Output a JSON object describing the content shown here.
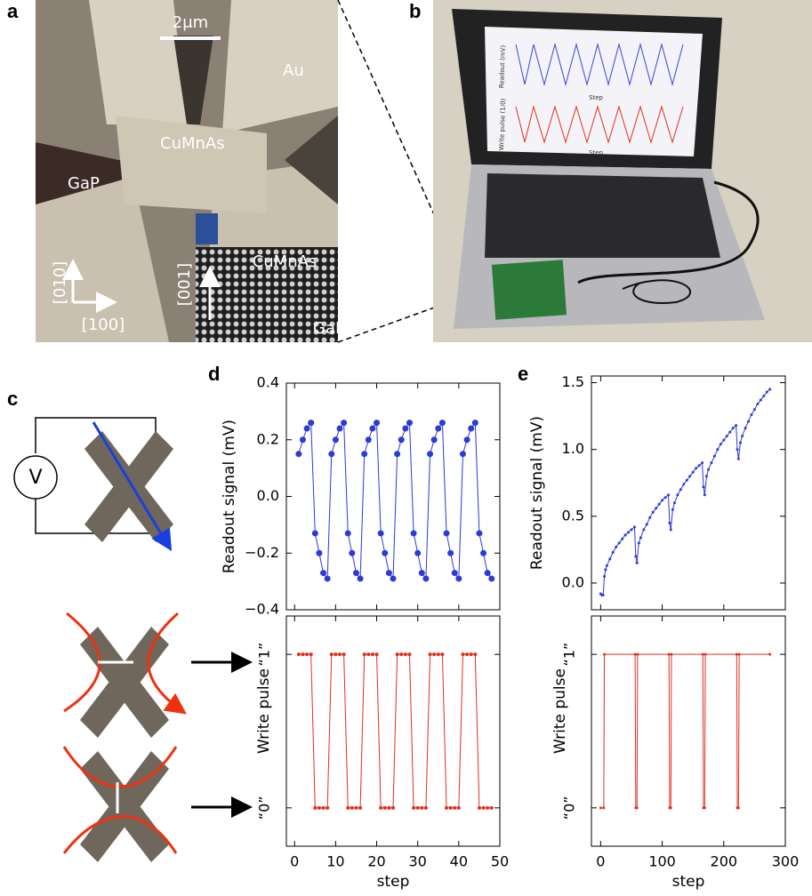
{
  "panel_labels": [
    "a",
    "b",
    "c",
    "d",
    "e"
  ],
  "micrograph": {
    "scale_bar": "2μm",
    "labels": [
      "Au",
      "CuMnAs",
      "GaP"
    ],
    "axes": [
      "[010]",
      "[100]"
    ],
    "inset": {
      "axis": "[001]",
      "labels": [
        "CuMnAs",
        "GaP"
      ]
    }
  },
  "laptop_screen": {
    "y_labels": [
      "Readout (mV)",
      "Write pulse (1/0)"
    ],
    "x_labels": [
      "Step",
      "Step"
    ]
  },
  "circuit": {
    "meter": "V"
  },
  "chart_data": [
    {
      "type": "line",
      "ylabel": "Readout signal (mV)",
      "color": "#2b3ad8",
      "x": [
        1,
        2,
        3,
        4,
        5,
        6,
        7,
        8,
        9,
        10,
        11,
        12,
        13,
        14,
        15,
        16,
        17,
        18,
        19,
        20,
        21,
        22,
        23,
        24,
        25,
        26,
        27,
        28,
        29,
        30,
        31,
        32,
        33,
        34,
        35,
        36,
        37,
        38,
        39,
        40,
        41,
        42,
        43,
        44,
        45,
        46,
        47,
        48
      ],
      "values": [
        0.15,
        0.2,
        0.24,
        0.26,
        -0.13,
        -0.2,
        -0.27,
        -0.29,
        0.15,
        0.2,
        0.24,
        0.26,
        -0.13,
        -0.2,
        -0.27,
        -0.29,
        0.15,
        0.2,
        0.24,
        0.26,
        -0.13,
        -0.2,
        -0.27,
        -0.29,
        0.15,
        0.2,
        0.24,
        0.26,
        -0.13,
        -0.2,
        -0.27,
        -0.29,
        0.15,
        0.2,
        0.24,
        0.26,
        -0.13,
        -0.2,
        -0.27,
        -0.29,
        0.15,
        0.2,
        0.24,
        0.26,
        -0.13,
        -0.2,
        -0.27,
        -0.29
      ],
      "xlim": [
        -2,
        50
      ],
      "xticks": [
        0,
        10,
        20,
        30,
        40,
        50
      ],
      "ylim": [
        -0.4,
        0.4
      ],
      "yticks": [
        {
          "value": -0.4,
          "label": "−0.4"
        },
        {
          "value": -0.2,
          "label": "−0.2"
        },
        {
          "value": 0,
          "label": "0.0"
        },
        0.2,
        0.4
      ]
    },
    {
      "type": "line",
      "ylabel": "Write pulse",
      "xlabel": "step",
      "color": "#e0301e",
      "x": [
        1,
        2,
        3,
        4,
        5,
        6,
        7,
        8,
        9,
        10,
        11,
        12,
        13,
        14,
        15,
        16,
        17,
        18,
        19,
        20,
        21,
        22,
        23,
        24,
        25,
        26,
        27,
        28,
        29,
        30,
        31,
        32,
        33,
        34,
        35,
        36,
        37,
        38,
        39,
        40,
        41,
        42,
        43,
        44,
        45,
        46,
        47,
        48
      ],
      "values": [
        1,
        1,
        1,
        1,
        0,
        0,
        0,
        0,
        1,
        1,
        1,
        1,
        0,
        0,
        0,
        0,
        1,
        1,
        1,
        1,
        0,
        0,
        0,
        0,
        1,
        1,
        1,
        1,
        0,
        0,
        0,
        0,
        1,
        1,
        1,
        1,
        0,
        0,
        0,
        0,
        1,
        1,
        1,
        1,
        0,
        0,
        0,
        0
      ],
      "xlim": [
        -2,
        50
      ],
      "xticks": [
        0,
        10,
        20,
        30,
        40,
        50
      ],
      "ylim": [
        -0.25,
        1.25
      ],
      "yticks": [
        {
          "value": 0,
          "label": "“0”"
        },
        {
          "value": 1,
          "label": "“1”"
        }
      ]
    },
    {
      "type": "line",
      "ylabel": "Readout signal (mV)",
      "color": "#2b3ad8",
      "x": [
        0,
        2,
        4,
        6,
        8,
        10,
        15,
        20,
        25,
        30,
        35,
        40,
        45,
        50,
        55,
        57,
        59,
        62,
        65,
        70,
        75,
        80,
        85,
        90,
        95,
        100,
        105,
        110,
        112,
        114,
        117,
        120,
        125,
        130,
        135,
        140,
        145,
        150,
        155,
        160,
        165,
        167,
        169,
        172,
        175,
        180,
        185,
        190,
        195,
        200,
        205,
        210,
        215,
        220,
        222,
        224,
        227,
        230,
        235,
        240,
        245,
        250,
        255,
        260,
        265,
        270,
        275
      ],
      "values": [
        -0.08,
        -0.09,
        -0.09,
        0.05,
        0.1,
        0.13,
        0.18,
        0.23,
        0.27,
        0.3,
        0.33,
        0.36,
        0.38,
        0.4,
        0.42,
        0.2,
        0.15,
        0.3,
        0.34,
        0.4,
        0.44,
        0.49,
        0.53,
        0.56,
        0.59,
        0.62,
        0.64,
        0.66,
        0.45,
        0.4,
        0.55,
        0.6,
        0.66,
        0.7,
        0.74,
        0.77,
        0.8,
        0.83,
        0.86,
        0.88,
        0.9,
        0.72,
        0.66,
        0.8,
        0.85,
        0.9,
        0.95,
        1.0,
        1.04,
        1.07,
        1.1,
        1.13,
        1.16,
        1.18,
        1.0,
        0.93,
        1.05,
        1.1,
        1.16,
        1.21,
        1.26,
        1.3,
        1.34,
        1.37,
        1.4,
        1.43,
        1.45
      ],
      "xlim": [
        -15,
        300
      ],
      "xticks": [
        0,
        100,
        200,
        300
      ],
      "ylim": [
        -0.2,
        1.55
      ],
      "yticks": [
        {
          "value": 0,
          "label": "0.0"
        },
        0.5,
        {
          "value": 1,
          "label": "1.0"
        },
        1.5
      ]
    },
    {
      "type": "line",
      "ylabel": "Write pulse",
      "xlabel": "step",
      "color": "#e0301e",
      "x": [
        0,
        5,
        6,
        56,
        57,
        59,
        60,
        111,
        112,
        114,
        115,
        166,
        167,
        169,
        170,
        221,
        222,
        224,
        225,
        275
      ],
      "values": [
        0,
        0,
        1,
        1,
        0,
        0,
        1,
        1,
        0,
        0,
        1,
        1,
        0,
        0,
        1,
        1,
        0,
        0,
        1,
        1
      ],
      "xlim": [
        -15,
        300
      ],
      "xticks": [
        0,
        100,
        200,
        300
      ],
      "ylim": [
        -0.25,
        1.25
      ],
      "yticks": [
        {
          "value": 0,
          "label": "“0”"
        },
        {
          "value": 1,
          "label": "“1”"
        }
      ]
    }
  ]
}
